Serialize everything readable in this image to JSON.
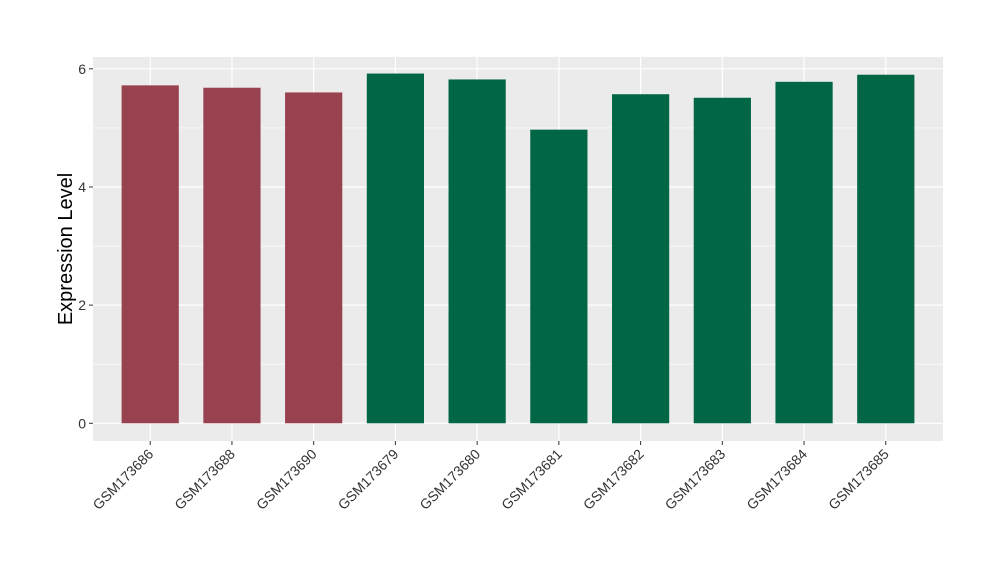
{
  "chart_data": {
    "type": "bar",
    "title": "",
    "xlabel": "",
    "ylabel": "Expression Level",
    "ylim": [
      -0.3,
      6.2
    ],
    "yticks": [
      "0",
      "2",
      "4",
      "6"
    ],
    "grid": true,
    "legend": "none",
    "categories": [
      "GSM173686",
      "GSM173688",
      "GSM173690",
      "GSM173679",
      "GSM173680",
      "GSM173681",
      "GSM173682",
      "GSM173683",
      "GSM173684",
      "GSM173685"
    ],
    "values": [
      5.72,
      5.68,
      5.6,
      5.92,
      5.82,
      4.97,
      5.57,
      5.51,
      5.78,
      5.9
    ],
    "bar_colors": [
      "#99424f",
      "#99424f",
      "#99424f",
      "#006645",
      "#006645",
      "#006645",
      "#006645",
      "#006645",
      "#006645",
      "#006645"
    ],
    "panel_color": "#ebebeb",
    "grid_color": "#ffffff"
  }
}
